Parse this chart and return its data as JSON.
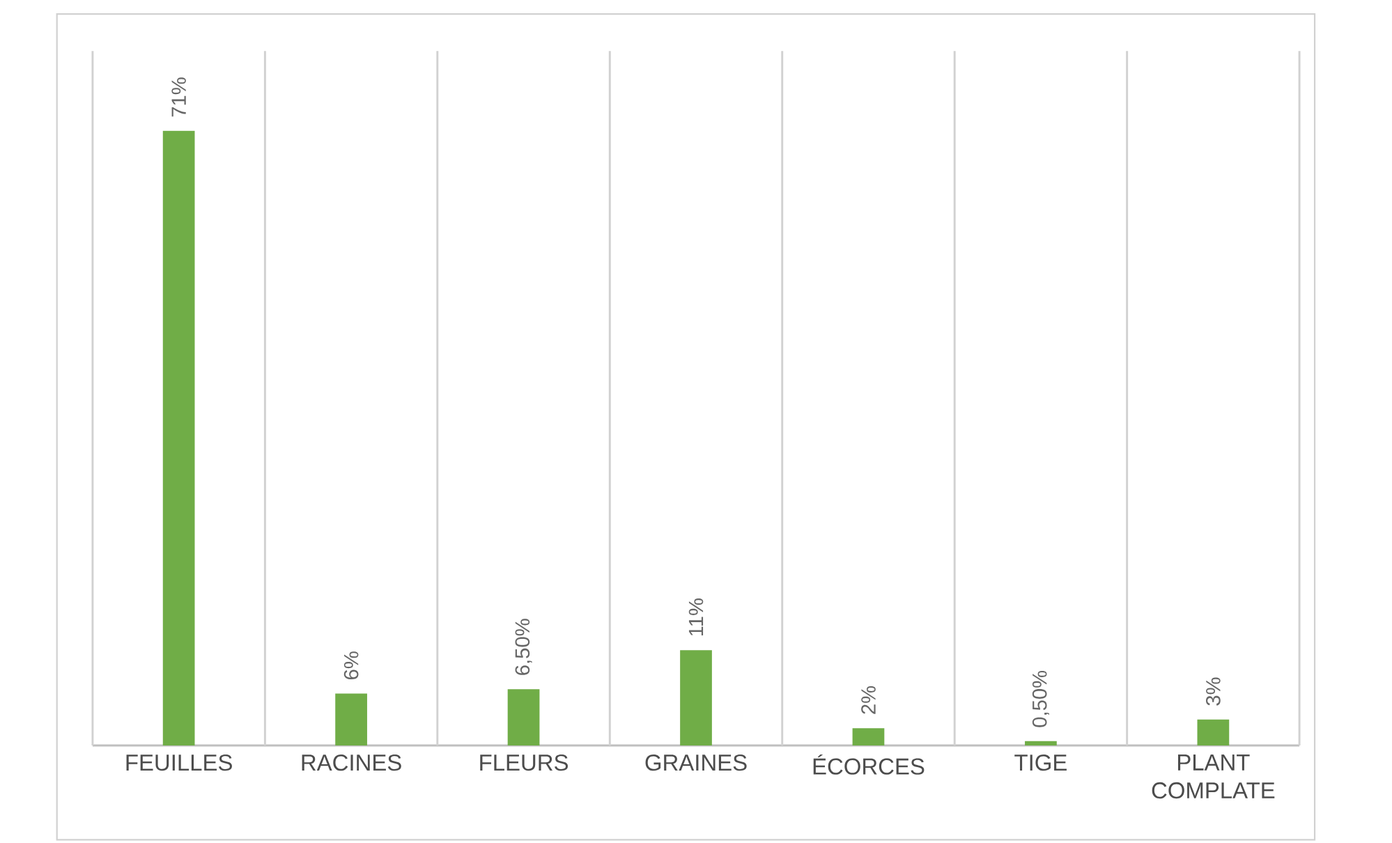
{
  "chart_data": {
    "type": "bar",
    "categories": [
      "FEUILLES",
      "RACINES",
      "FLEURS",
      "GRAINES",
      "ÉCORCES",
      "TIGE",
      "PLANT COMPLATE"
    ],
    "values": [
      71,
      6,
      6.5,
      11,
      2,
      0.5,
      3
    ],
    "value_labels": [
      "71%",
      "6%",
      "6,50%",
      "11%",
      "2%",
      "0,50%",
      "3%"
    ],
    "color": "#70ad47",
    "grid": "x"
  }
}
